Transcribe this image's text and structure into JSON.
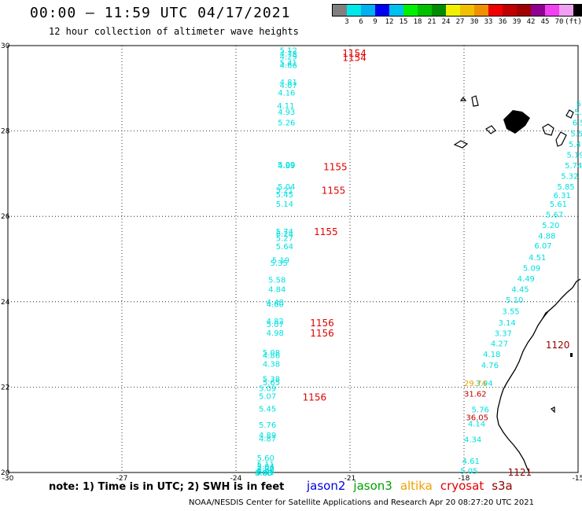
{
  "header": {
    "title": "00:00 – 11:59 UTC 04/17/2021",
    "subtitle": "12 hour collection of altimeter wave heights"
  },
  "legend": {
    "colors": [
      "#808080",
      "#00e8e8",
      "#00b0f0",
      "#0000f0",
      "#00c0f0",
      "#00f000",
      "#00c000",
      "#008c00",
      "#f0f000",
      "#f0c000",
      "#f09000",
      "#f00000",
      "#c00000",
      "#a00000",
      "#900090",
      "#f040f0",
      "#f0a0f0",
      "#000000"
    ],
    "labels": [
      "3",
      "6",
      "9",
      "12",
      "15",
      "18",
      "21",
      "24",
      "27",
      "30",
      "33",
      "36",
      "39",
      "42",
      "45",
      "70",
      "(ft)"
    ]
  },
  "map": {
    "lon_range": [
      -30,
      -15
    ],
    "lat_range": [
      20,
      30
    ],
    "x_ticks": [
      "-30",
      "-27",
      "-24",
      "-21",
      "-18",
      "-15"
    ],
    "y_ticks": [
      "30",
      "28",
      "26",
      "24",
      "22",
      "20"
    ],
    "grid": true
  },
  "tracks": {
    "west": {
      "color": "#00e0e0",
      "lons": [
        -22.85,
        -22.85,
        -22.85,
        -22.85,
        -22.85,
        -22.85,
        -22.85,
        -22.9,
        -22.92,
        -22.9,
        -22.9,
        -22.9,
        -22.9,
        -22.9,
        -22.95,
        -22.95,
        -22.95,
        -22.95,
        -22.95,
        -22.95,
        -22.95,
        -23.05,
        -23.1,
        -23.15,
        -23.15,
        -23.2,
        -23.2,
        -23.2,
        -23.2,
        -23.2,
        -23.3,
        -23.3,
        -23.3,
        -23.3,
        -23.3,
        -23.4,
        -23.4,
        -23.4,
        -23.4,
        -23.4,
        -23.4,
        -23.45,
        -23.45,
        -23.45,
        -23.45,
        -23.45,
        -23.45,
        -23.5,
        -23.5,
        -23.5
      ],
      "lats": [
        29.9,
        29.82,
        29.75,
        29.6,
        29.55,
        29.15,
        29.08,
        28.9,
        28.6,
        28.45,
        28.2,
        27.22,
        27.2,
        26.7,
        26.62,
        26.52,
        26.3,
        25.65,
        25.6,
        25.5,
        25.3,
        24.98,
        24.92,
        24.52,
        24.3,
        24.0,
        23.95,
        23.55,
        23.48,
        23.28,
        22.82,
        22.75,
        22.55,
        22.2,
        22.12,
        21.98,
        21.8,
        21.5,
        21.12,
        20.88,
        20.8,
        20.35,
        20.2,
        20.15,
        20.1,
        20.05,
        20.02,
        20.0,
        20.0,
        20.0
      ],
      "values": [
        "5.12",
        "4.78",
        "4.29",
        "5.41",
        "4.66",
        "4.81",
        "4.07",
        "4.16",
        "4.11",
        "4.93",
        "5.26",
        "5.09",
        "4.89",
        "5.04",
        "5.21",
        "5.45",
        "5.14",
        "5.74",
        "6.24",
        "5.27",
        "5.64",
        "5.19",
        "5.35",
        "5.58",
        "4.84",
        "4.48",
        "4.60",
        "4.82",
        "5.07",
        "4.98",
        "5.08",
        "4.86",
        "4.38",
        "5.38",
        "5.65",
        "5.09",
        "5.07",
        "5.45",
        "5.76",
        "4.89",
        "4.87",
        "5.60",
        "5.11",
        "5.04",
        "4.90",
        "5.06",
        "5.01",
        "5.00",
        "4.98",
        "4.95"
      ]
    },
    "east": {
      "color": "#00e0e0",
      "lons": [
        -15.05,
        -15.1,
        -15.15,
        -15.2,
        -15.25,
        -15.3,
        -15.35,
        -15.45,
        -15.55,
        -15.65,
        -15.75,
        -15.85,
        -15.95,
        -16.05,
        -16.15,
        -16.3,
        -16.45,
        -16.6,
        -16.75,
        -16.9,
        -17.0,
        -17.1,
        -17.2,
        -17.3,
        -17.5,
        -17.55,
        -17.7,
        -17.8,
        -17.9,
        -18.0,
        -18.05
      ],
      "lats": [
        28.65,
        28.45,
        28.2,
        27.95,
        27.7,
        27.45,
        27.2,
        26.95,
        26.7,
        26.5,
        26.3,
        26.05,
        25.8,
        25.55,
        25.32,
        25.05,
        24.8,
        24.55,
        24.3,
        24.05,
        23.78,
        23.52,
        23.27,
        23.03,
        22.78,
        22.52,
        22.1,
        21.48,
        21.15,
        20.78,
        20.28
      ],
      "values": [
        "5.97",
        "5.18",
        "6.54",
        "5.52",
        "5.41",
        "5.19",
        "5.74",
        "5.32",
        "5.85",
        "6.31",
        "5.61",
        "5.67",
        "5.20",
        "4.88",
        "6.07",
        "4.51",
        "5.09",
        "4.49",
        "4.45",
        "5.10",
        "3.55",
        "3.14",
        "3.37",
        "4.27",
        "4.18",
        "4.76",
        "3.94",
        "5.76",
        "4.14",
        "4.34",
        "4.61"
      ]
    },
    "east_extra": {
      "color": "#00e0e0",
      "lons": [
        -18.1
      ],
      "lats": [
        20.05
      ],
      "values": [
        "5.05"
      ]
    },
    "orange": {
      "color": "#e8a000",
      "lons": [
        -18.0
      ],
      "lats": [
        22.1
      ],
      "values": [
        "29.74"
      ]
    },
    "red": {
      "color": "#c00000",
      "lons": [
        -18.0,
        -17.95
      ],
      "lats": [
        21.85,
        21.3
      ],
      "values": [
        "31.62",
        "36.05"
      ]
    }
  },
  "passes": [
    {
      "label": "1154",
      "lon": -21.2,
      "lat": 29.83,
      "color": "#e00000"
    },
    {
      "label": "1154",
      "lon": -21.2,
      "lat": 29.73,
      "color": "#e00000"
    },
    {
      "label": "1155",
      "lon": -21.7,
      "lat": 27.17,
      "color": "#e00000"
    },
    {
      "label": "1155",
      "lon": -21.75,
      "lat": 26.62,
      "color": "#e00000"
    },
    {
      "label": "1155",
      "lon": -21.95,
      "lat": 25.65,
      "color": "#e00000"
    },
    {
      "label": "1156",
      "lon": -22.05,
      "lat": 23.52,
      "color": "#e00000"
    },
    {
      "label": "1156",
      "lon": -22.05,
      "lat": 23.28,
      "color": "#e00000"
    },
    {
      "label": "1156",
      "lon": -22.25,
      "lat": 21.78,
      "color": "#e00000"
    },
    {
      "label": "1120",
      "lon": -15.85,
      "lat": 23.0,
      "color": "#900000"
    },
    {
      "label": "1121",
      "lon": -16.85,
      "lat": 20.02,
      "color": "#900000"
    }
  ],
  "note": "note: 1) Time is in UTC; 2) SWH is in feet",
  "satellites": [
    {
      "name": "jason2",
      "color": "#0000e0"
    },
    {
      "name": "jason3",
      "color": "#00a000"
    },
    {
      "name": "altika",
      "color": "#f0a000"
    },
    {
      "name": "cryosat",
      "color": "#e00000"
    },
    {
      "name": "s3a",
      "color": "#900000"
    }
  ],
  "credit": "NOAA/NESDIS Center for Satellite Applications and Research    Apr 20 08:27:20 UTC 2021"
}
